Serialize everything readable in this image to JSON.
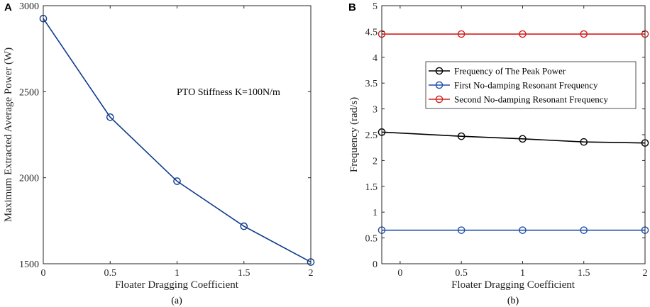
{
  "chart_data": [
    {
      "type": "line",
      "panel_letter": "A",
      "caption": "(a)",
      "xlabel": "Floater Dragging Coefficient",
      "ylabel": "Maximum Extracted Average Power (W)",
      "xlim": [
        0,
        2
      ],
      "ylim": [
        1500,
        3000
      ],
      "xticks": [
        0,
        0.5,
        1,
        1.5,
        2
      ],
      "xtick_labels": [
        "0",
        "0.5",
        "1",
        "1.5",
        "2"
      ],
      "yticks": [
        1500,
        2000,
        2500,
        3000
      ],
      "ytick_labels": [
        "1500",
        "2000",
        "2500",
        "3000"
      ],
      "annotation": "PTO Stiffness K=100N/m",
      "series": [
        {
          "name": "Maximum Extracted Average Power",
          "color": "#0d3b8c",
          "marker": "circle",
          "x": [
            0,
            0.5,
            1,
            1.5,
            2
          ],
          "values": [
            2925,
            2352,
            1980,
            1718,
            1510
          ]
        }
      ]
    },
    {
      "type": "line",
      "panel_letter": "B",
      "caption": "(b)",
      "xlabel": "Floater Dragging Coefficient",
      "ylabel": "Frequency (rad/s)",
      "xlim": [
        -0.15,
        2
      ],
      "ylim": [
        0,
        5
      ],
      "xticks": [
        0,
        0.5,
        1,
        1.5,
        2
      ],
      "xtick_labels": [
        "0",
        "0.5",
        "1",
        "1.5",
        "2"
      ],
      "yticks": [
        0,
        0.5,
        1,
        1.5,
        2,
        2.5,
        3,
        3.5,
        4,
        4.5,
        5
      ],
      "ytick_labels": [
        "0",
        "0.5",
        "1",
        "1.5",
        "2",
        "2.5",
        "3",
        "3.5",
        "4",
        "4.5",
        "5"
      ],
      "legend_position": "upper-right",
      "series": [
        {
          "name": "Frequency of The Peak Power",
          "color": "#000000",
          "marker": "circle",
          "x": [
            -0.15,
            0.5,
            1,
            1.5,
            2
          ],
          "values": [
            2.55,
            2.47,
            2.42,
            2.36,
            2.34
          ]
        },
        {
          "name": "First No-damping Resonant Frequency",
          "color": "#1f4fa8",
          "marker": "circle",
          "x": [
            -0.15,
            0.5,
            1,
            1.5,
            2
          ],
          "values": [
            0.65,
            0.65,
            0.65,
            0.65,
            0.65
          ]
        },
        {
          "name": "Second No-damping Resonant Frequency",
          "color": "#d42020",
          "marker": "circle",
          "x": [
            -0.15,
            0.5,
            1,
            1.5,
            2
          ],
          "values": [
            4.45,
            4.45,
            4.45,
            4.45,
            4.45
          ]
        }
      ]
    }
  ]
}
